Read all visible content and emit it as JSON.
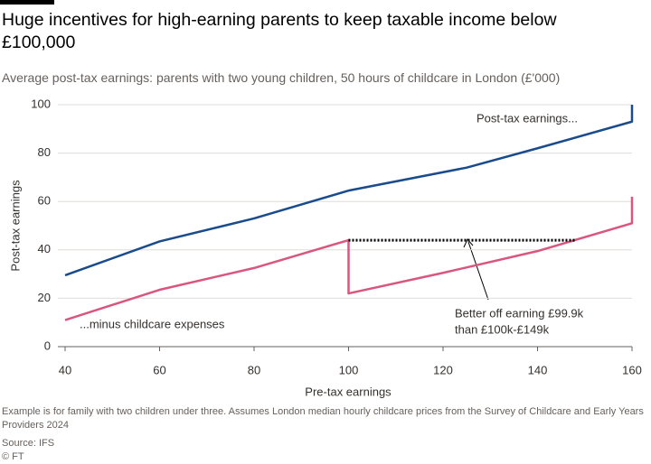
{
  "chart_data": {
    "type": "line",
    "title": "Huge incentives for high-earning parents to keep taxable income below £100,000",
    "subtitle": "Average post-tax earnings: parents with two young children, 50 hours of childcare in London (£'000)",
    "x_label": "Pre-tax earnings",
    "y_label": "Post-tax earnings",
    "series": [
      {
        "name": "Post-tax earnings...",
        "color": "#1a4b8c",
        "x": [
          40,
          60,
          80,
          100,
          125,
          140,
          160,
          160
        ],
        "values": [
          29.5,
          43.5,
          53,
          64.5,
          74,
          82,
          93,
          100
        ]
      },
      {
        "name": "...minus childcare expenses",
        "color": "#d9577e",
        "x": [
          40,
          60,
          80,
          100,
          100,
          120,
          140,
          160,
          160
        ],
        "values": [
          11,
          23.5,
          32.5,
          44,
          22,
          30.5,
          39.5,
          51,
          62
        ]
      }
    ],
    "annotation_line": {
      "x": [
        100,
        148
      ],
      "y": 44
    },
    "annotation": [
      "Better off earning £99.9k",
      "than £100k-£149k"
    ],
    "xlim": [
      40,
      160
    ],
    "xticks": [
      40,
      60,
      80,
      100,
      120,
      140,
      160
    ],
    "ylim": [
      0,
      100
    ],
    "yticks": [
      0,
      20,
      40,
      60,
      80,
      100
    ],
    "grid": true,
    "note": "Example is for family with two children under three. Assumes London median hourly childcare prices from the Survey of Childcare and Early Years Providers 2024",
    "source": "Source: IFS",
    "credit": "© FT"
  }
}
